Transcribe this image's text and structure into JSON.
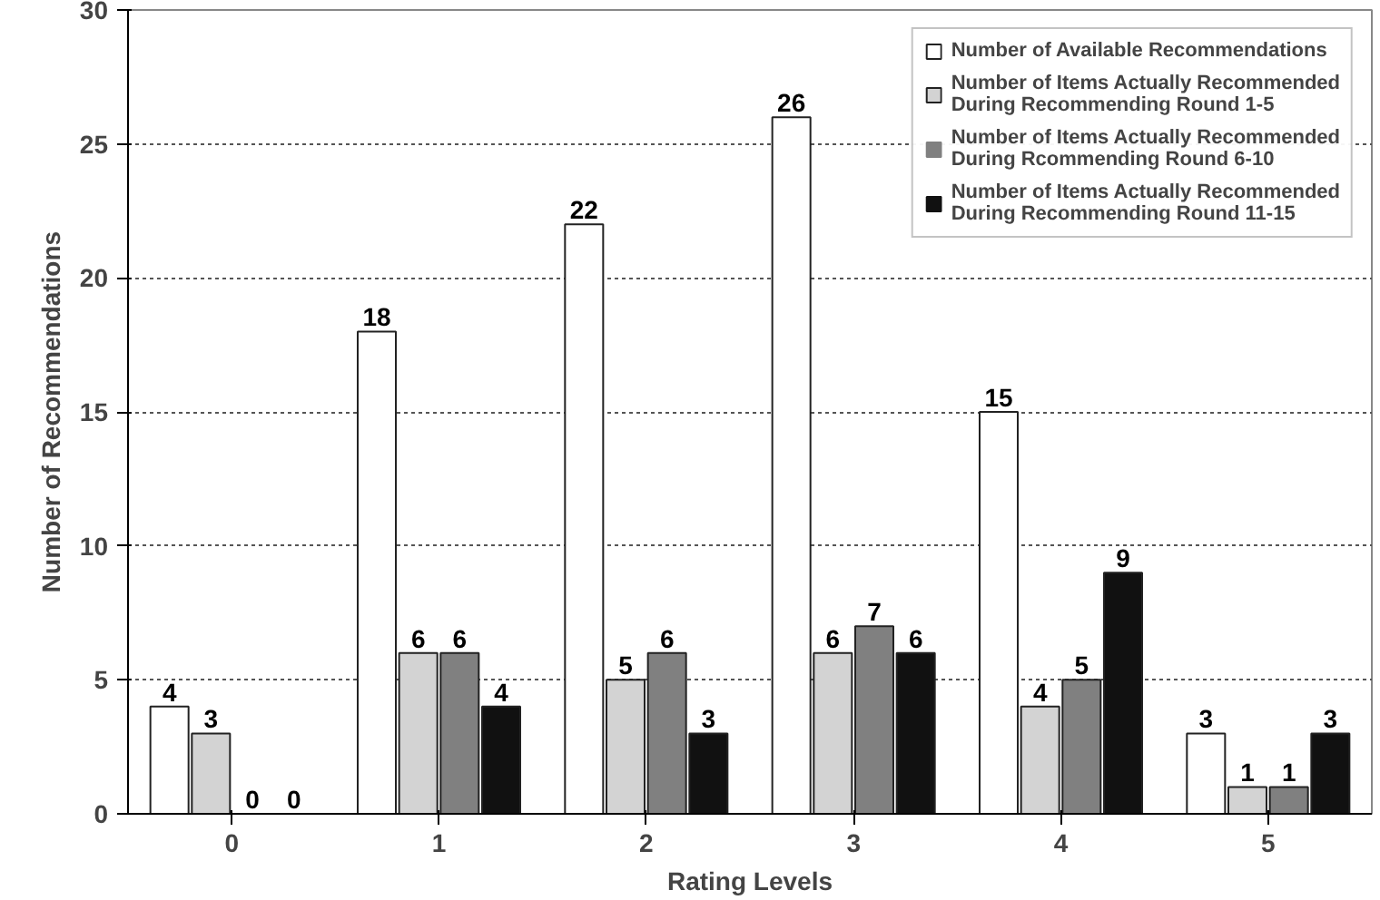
{
  "chart_data": {
    "type": "bar",
    "xlabel": "Rating Levels",
    "ylabel": "Number of Recommendations",
    "categories": [
      "0",
      "1",
      "2",
      "3",
      "4",
      "5"
    ],
    "series": [
      {
        "name": "Number of Available Recommendations",
        "color": "#ffffff",
        "values": [
          4,
          18,
          22,
          26,
          15,
          3
        ]
      },
      {
        "name": "Number of Items Actually Recommended During Recommending Round 1-5",
        "color": "#d3d3d3",
        "values": [
          3,
          6,
          5,
          6,
          4,
          1
        ]
      },
      {
        "name": "Number of Items Actually Recommended During Rcommending Round 6-10",
        "color": "#808080",
        "values": [
          0,
          6,
          6,
          7,
          5,
          1
        ]
      },
      {
        "name": "Number of Items Actually Recommended During Recommending Round 11-15",
        "color": "#111111",
        "values": [
          0,
          4,
          3,
          6,
          9,
          3
        ]
      }
    ],
    "ylim": [
      0,
      30
    ],
    "yticks": [
      0,
      5,
      10,
      15,
      20,
      25,
      30
    ],
    "grid": "y",
    "legend": "top right",
    "data_labels": true
  }
}
